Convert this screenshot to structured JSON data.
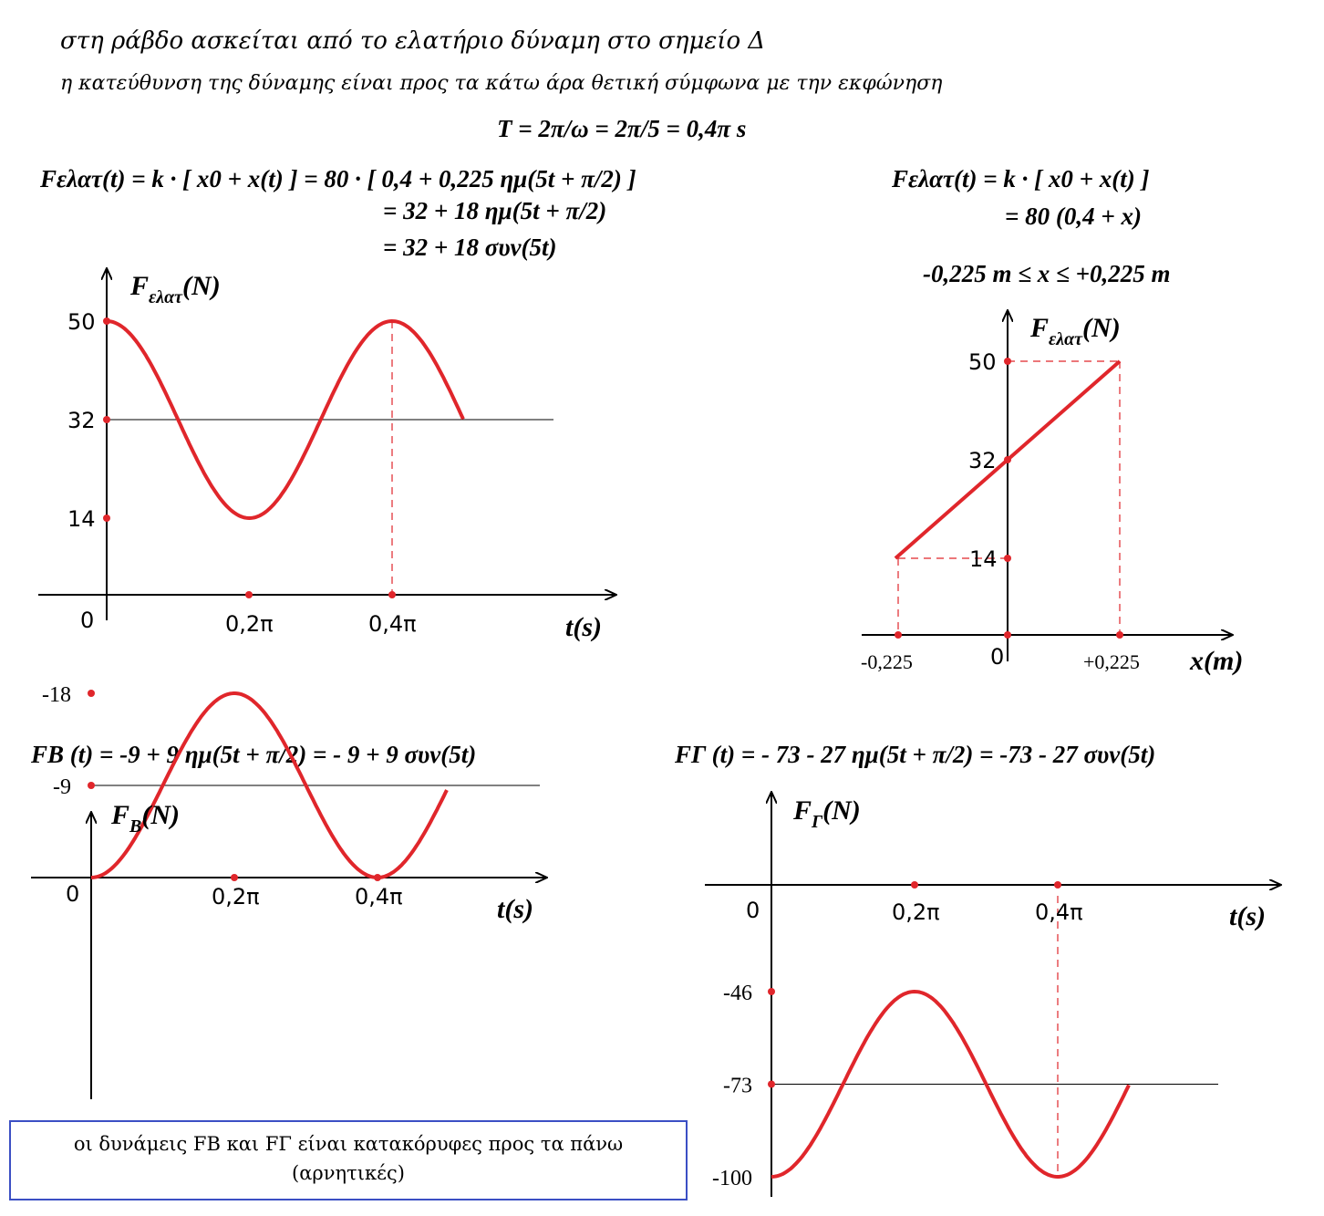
{
  "text": {
    "line1": "στη ράβδο ασκείται από το ελατήριο δύναμη στο σημείο Δ",
    "line2": "η κατεύθυνση της δύναμης είναι προς τα κάτω άρα θετική σύμφωνα με την εκφώνηση",
    "period": "T = 2π/ω = 2π/5 = 0,4π s",
    "eq_main_1": "Fελατ(t)  =  k · [ x0  + x(t) ]  =  80 · [ 0,4  +  0,225 ημ(5t + π/2) ]",
    "eq_main_2": "= 32  + 18 ημ(5t + π/2)",
    "eq_main_3": "= 32 + 18 συν(5t)",
    "eq_right_1": "Fελατ(t)  =  k · [ x0  + x(t) ]",
    "eq_right_2": "= 80 (0,4 + x)",
    "range": "-0,225 m  ≤  x  ≤ +0,225 m",
    "eq_FB": "FB (t) = -9 + 9 ημ(5t + π/2) = - 9 + 9 συν(5t)",
    "eq_FG": "FΓ (t) = - 73 - 27 ημ(5t + π/2) = -73 - 27 συν(5t)",
    "note_line1": "οι δυνάμεις FB και FΓ είναι κατακόρυφες προς τα πάνω",
    "note_line2": "(αρνητικές)"
  },
  "colors": {
    "curve": "#e0262b",
    "axis": "#000000",
    "guide": "#e0262b",
    "box": "#3b4fc4"
  },
  "chart_data": [
    {
      "type": "line",
      "name": "F_elat_vs_t",
      "function": "32 + 18 cos(5t)",
      "ylabel": "Fελατ(N)",
      "xlabel": "t(s)",
      "yticks": [
        0,
        14,
        32,
        50
      ],
      "ytick_labels": [
        "0",
        "14",
        "32",
        "50"
      ],
      "xticks": [
        0.6283,
        1.2566
      ],
      "xtick_labels": [
        "0,2π",
        "0,4π"
      ],
      "x_range": [
        0,
        1.5
      ],
      "ylim": [
        0,
        50
      ],
      "reference_line": 32
    },
    {
      "type": "line",
      "name": "F_elat_vs_x",
      "function": "80 (0.4 + x)",
      "ylabel": "Fελατ(N)",
      "xlabel": "x(m)",
      "x": [
        -0.225,
        0.225
      ],
      "y": [
        14,
        50
      ],
      "yticks": [
        0,
        14,
        32,
        50
      ],
      "ytick_labels": [
        "0",
        "14",
        "32",
        "50"
      ],
      "xtick_labels": [
        "-0,225",
        "0",
        "+0,225"
      ]
    },
    {
      "type": "line",
      "name": "F_B_vs_t",
      "function": "-9 + 9 cos(5t)",
      "ylabel": "FB(N)",
      "xlabel": "t(s)",
      "yticks": [
        0,
        -9,
        -18
      ],
      "ytick_labels": [
        "0",
        "-9",
        "-18"
      ],
      "xticks": [
        0.6283,
        1.2566
      ],
      "xtick_labels": [
        "0,2π",
        "0,4π"
      ],
      "x_range": [
        0,
        1.5
      ],
      "ylim": [
        -18,
        0
      ],
      "reference_line": -9
    },
    {
      "type": "line",
      "name": "F_G_vs_t",
      "function": "-73 - 27 cos(5t)",
      "ylabel": "FΓ(N)",
      "xlabel": "t(s)",
      "yticks": [
        -46,
        -73,
        -100
      ],
      "ytick_labels": [
        "-46",
        "-73",
        "-100"
      ],
      "xticks": [
        0.6283,
        1.2566
      ],
      "xtick_labels": [
        "0,2π",
        "0,4π"
      ],
      "x_range": [
        0,
        1.5
      ],
      "ylim": [
        -100,
        -46
      ],
      "reference_line": -73
    }
  ]
}
